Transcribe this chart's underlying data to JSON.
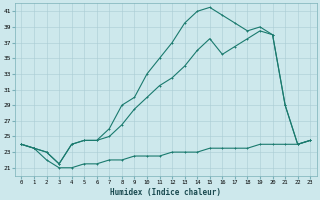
{
  "xlabel": "Humidex (Indice chaleur)",
  "ylabel": "",
  "bg_color": "#cde8ec",
  "grid_color": "#aacdd4",
  "line_color": "#1a7a6e",
  "xlim": [
    -0.5,
    23.5
  ],
  "ylim": [
    20,
    42
  ],
  "yticks": [
    21,
    23,
    25,
    27,
    29,
    31,
    33,
    35,
    37,
    39,
    41
  ],
  "xticks": [
    0,
    1,
    2,
    3,
    4,
    5,
    6,
    7,
    8,
    9,
    10,
    11,
    12,
    13,
    14,
    15,
    16,
    17,
    18,
    19,
    20,
    21,
    22,
    23
  ],
  "line1_x": [
    0,
    1,
    2,
    3,
    4,
    5,
    6,
    7,
    8,
    9,
    10,
    11,
    12,
    13,
    14,
    15,
    16,
    17,
    18,
    19,
    20,
    21,
    22,
    23
  ],
  "line1_y": [
    24.0,
    23.5,
    23.0,
    21.5,
    24.0,
    24.5,
    24.5,
    26.0,
    29.0,
    30.0,
    33.0,
    35.0,
    37.0,
    39.5,
    41.0,
    41.5,
    40.5,
    39.5,
    38.5,
    39.0,
    38.0,
    29.0,
    24.0,
    24.5
  ],
  "line2_x": [
    0,
    1,
    2,
    3,
    4,
    5,
    6,
    7,
    8,
    9,
    10,
    11,
    12,
    13,
    14,
    15,
    16,
    17,
    18,
    19,
    20,
    21,
    22,
    23
  ],
  "line2_y": [
    24.0,
    23.5,
    23.0,
    21.5,
    24.0,
    24.5,
    24.5,
    25.0,
    26.5,
    28.5,
    30.0,
    31.5,
    32.5,
    34.0,
    36.0,
    37.5,
    35.5,
    36.5,
    37.5,
    38.5,
    38.0,
    29.0,
    24.0,
    24.5
  ],
  "line3_x": [
    0,
    1,
    2,
    3,
    4,
    5,
    6,
    7,
    8,
    9,
    10,
    11,
    12,
    13,
    14,
    15,
    16,
    17,
    18,
    19,
    20,
    21,
    22,
    23
  ],
  "line3_y": [
    24.0,
    23.5,
    22.0,
    21.0,
    21.0,
    21.5,
    21.5,
    22.0,
    22.0,
    22.5,
    22.5,
    22.5,
    23.0,
    23.0,
    23.0,
    23.5,
    23.5,
    23.5,
    23.5,
    24.0,
    24.0,
    24.0,
    24.0,
    24.5
  ]
}
